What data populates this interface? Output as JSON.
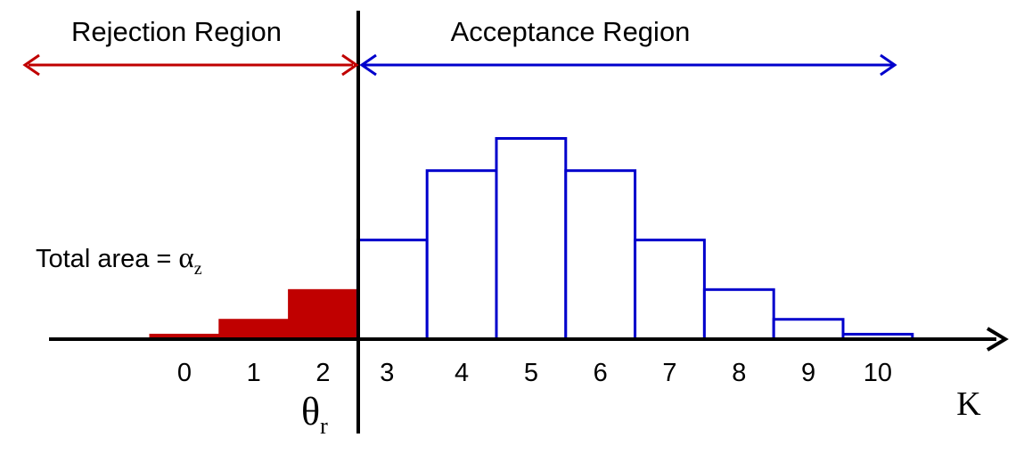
{
  "chart_data": {
    "type": "bar",
    "categories": [
      "0",
      "1",
      "2",
      "3",
      "4",
      "5",
      "6",
      "7",
      "8",
      "9",
      "10"
    ],
    "values": [
      0.1,
      0.4,
      1.0,
      2.0,
      3.4,
      4.05,
      3.4,
      2.0,
      1.0,
      0.4,
      0.1
    ],
    "series": [
      {
        "values": [
          0.1,
          0.4,
          1.0,
          0,
          0,
          0,
          0,
          0,
          0,
          0,
          0
        ],
        "color": "#c00000"
      },
      {
        "values": [
          0,
          0,
          0,
          2.0,
          3.4,
          4.05,
          3.4,
          2.0,
          1.0,
          0.4,
          0.1
        ],
        "color": "#0000cc"
      }
    ],
    "xlabel": "K",
    "ylim": [
      0,
      4.5
    ],
    "threshold_label": "θ",
    "threshold_subscript": "r",
    "threshold_between": [
      "2",
      "3"
    ],
    "annotations": {
      "rejection_label": "Rejection Region",
      "acceptance_label": "Acceptance Region",
      "area_prefix": "Total area = ",
      "area_symbol": "α",
      "area_subscript": "z"
    },
    "colors": {
      "rejection": "#c00000",
      "acceptance": "#0000cc",
      "axis": "#000000"
    },
    "grid": false
  }
}
